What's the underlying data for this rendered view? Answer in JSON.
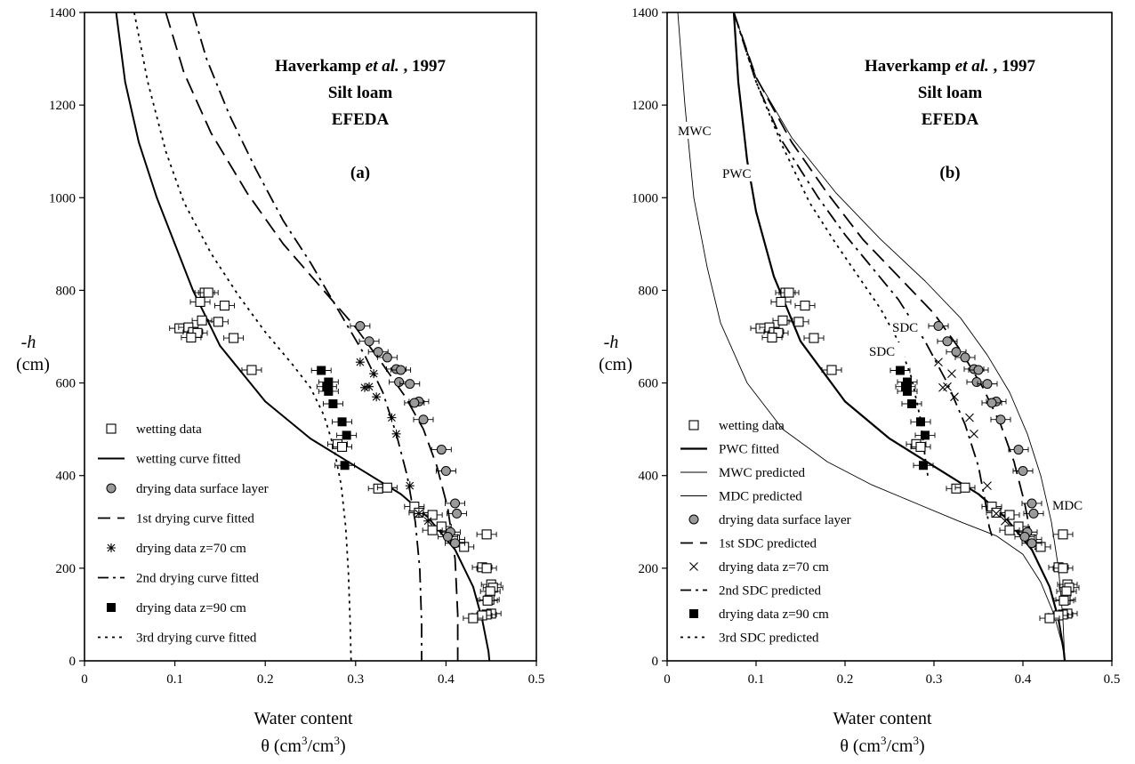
{
  "chart_data": [
    {
      "type": "scatter",
      "panel": "(a)",
      "title": [
        "Haverkamp et al. , 1997",
        "Silt loam",
        "EFEDA"
      ],
      "xlabel": "Water content",
      "xlabel_unit": "θ  (cm3/cm3)",
      "ylabel": "-h",
      "ylabel_unit": "(cm)",
      "xlim": [
        0,
        0.5
      ],
      "ylim": [
        0,
        1400
      ],
      "xticks": [
        "0",
        "0.1",
        "0.2",
        "0.3",
        "0.4",
        "0.5"
      ],
      "yticks": [
        "0",
        "200",
        "400",
        "600",
        "800",
        "1000",
        "1200",
        "1400"
      ],
      "legend_position": "bottom-left",
      "legend": [
        {
          "label": "wetting data",
          "style": "open-square"
        },
        {
          "label": "wetting curve fitted",
          "style": "solid"
        },
        {
          "label": "drying data surface layer",
          "style": "gray-circle"
        },
        {
          "label": "1st  drying curve fitted",
          "style": "long-dash"
        },
        {
          "label": "drying data z=70 cm",
          "style": "star"
        },
        {
          "label": "2nd drying curve fitted",
          "style": "dash-dot"
        },
        {
          "label": "drying data z=90 cm",
          "style": "filled-square"
        },
        {
          "label": "3rd drying curve fitted",
          "style": "dotted"
        }
      ],
      "series": [
        {
          "name": "wetting curve fitted",
          "style": "solid",
          "x": [
            0.035,
            0.045,
            0.06,
            0.08,
            0.1,
            0.12,
            0.15,
            0.2,
            0.25,
            0.3,
            0.35,
            0.38,
            0.41,
            0.43,
            0.44,
            0.447,
            0.448
          ],
          "y": [
            1400,
            1250,
            1120,
            1000,
            900,
            800,
            680,
            560,
            480,
            420,
            360,
            310,
            240,
            160,
            90,
            20,
            0
          ]
        },
        {
          "name": "1st drying curve fitted",
          "style": "long-dash",
          "x": [
            0.09,
            0.11,
            0.14,
            0.18,
            0.22,
            0.26,
            0.3,
            0.33,
            0.355,
            0.375,
            0.39,
            0.402,
            0.41,
            0.413,
            0.413
          ],
          "y": [
            1400,
            1270,
            1140,
            1010,
            900,
            810,
            720,
            640,
            570,
            500,
            420,
            330,
            220,
            100,
            0
          ]
        },
        {
          "name": "2nd drying curve fitted",
          "style": "dash-dot",
          "x": [
            0.12,
            0.135,
            0.16,
            0.19,
            0.22,
            0.25,
            0.28,
            0.31,
            0.33,
            0.345,
            0.357,
            0.366,
            0.371,
            0.373,
            0.373
          ],
          "y": [
            1400,
            1300,
            1180,
            1060,
            950,
            860,
            760,
            660,
            580,
            490,
            400,
            300,
            200,
            80,
            0
          ]
        },
        {
          "name": "3rd drying curve fitted",
          "style": "dotted",
          "x": [
            0.055,
            0.07,
            0.09,
            0.11,
            0.14,
            0.17,
            0.2,
            0.23,
            0.25,
            0.265,
            0.276,
            0.284,
            0.289,
            0.292,
            0.294,
            0.295
          ],
          "y": [
            1400,
            1250,
            1100,
            990,
            880,
            790,
            710,
            640,
            590,
            530,
            460,
            380,
            290,
            190,
            80,
            0
          ]
        },
        {
          "name": "wetting data",
          "style": "open-square",
          "x": [
            0.133,
            0.137,
            0.128,
            0.155,
            0.13,
            0.148,
            0.165,
            0.105,
            0.115,
            0.12,
            0.125,
            0.118,
            0.185,
            0.28,
            0.285,
            0.325,
            0.335,
            0.365,
            0.37,
            0.385,
            0.395,
            0.385,
            0.41,
            0.42,
            0.445,
            0.44,
            0.445,
            0.45,
            0.452,
            0.449,
            0.448,
            0.446,
            0.45,
            0.445,
            0.44,
            0.43
          ],
          "y": [
            795,
            795,
            775,
            767,
            735,
            732,
            697,
            718,
            720,
            710,
            708,
            698,
            628,
            468,
            462,
            372,
            374,
            333,
            320,
            315,
            290,
            282,
            262,
            246,
            273,
            202,
            200,
            165,
            158,
            150,
            132,
            130,
            102,
            100,
            98,
            92
          ]
        },
        {
          "name": "drying data surface layer",
          "style": "gray-circle",
          "x": [
            0.305,
            0.315,
            0.325,
            0.335,
            0.345,
            0.35,
            0.348,
            0.36,
            0.37,
            0.365,
            0.375,
            0.395,
            0.4,
            0.41,
            0.412,
            0.405,
            0.41,
            0.402
          ],
          "y": [
            723,
            690,
            667,
            655,
            630,
            628,
            602,
            598,
            560,
            557,
            521,
            456,
            410,
            340,
            318,
            278,
            254,
            268
          ]
        },
        {
          "name": "drying data z=70 cm",
          "style": "star",
          "x": [
            0.305,
            0.32,
            0.315,
            0.31,
            0.323,
            0.34,
            0.345,
            0.36,
            0.37,
            0.38
          ],
          "y": [
            645,
            620,
            592,
            590,
            570,
            525,
            490,
            378,
            318,
            302
          ]
        },
        {
          "name": "drying data z=90 cm",
          "style": "filled-square",
          "x": [
            0.262,
            0.27,
            0.268,
            0.27,
            0.275,
            0.285,
            0.29,
            0.288
          ],
          "y": [
            627,
            602,
            592,
            582,
            555,
            516,
            487,
            422
          ]
        }
      ]
    },
    {
      "type": "scatter",
      "panel": "(b)",
      "title": [
        "Haverkamp et al. , 1997",
        "Silt loam",
        "EFEDA"
      ],
      "xlabel": "Water content",
      "xlabel_unit": "θ  (cm3/cm3)",
      "ylabel": "-h",
      "ylabel_unit": "(cm)",
      "xlim": [
        0,
        0.5
      ],
      "ylim": [
        0,
        1400
      ],
      "xticks": [
        "0",
        "0.1",
        "0.2",
        "0.3",
        "0.4",
        "0.5"
      ],
      "yticks": [
        "0",
        "200",
        "400",
        "600",
        "800",
        "1000",
        "1200",
        "1400"
      ],
      "legend_position": "bottom-left",
      "annotations": [
        "MWC",
        "PWC",
        "SDC",
        "SDC",
        "MDC"
      ],
      "legend": [
        {
          "label": "wetting data",
          "style": "open-square"
        },
        {
          "label": "PWC  fitted",
          "style": "solid-thick"
        },
        {
          "label": "MWC predicted",
          "style": "solid-thin"
        },
        {
          "label": "MDC  predicted",
          "style": "solid-thin"
        },
        {
          "label": "drying data surface layer",
          "style": "gray-circle"
        },
        {
          "label": "1st  SDC  predicted",
          "style": "long-dash"
        },
        {
          "label": "drying data z=70 cm",
          "style": "cross"
        },
        {
          "label": "2nd SDC  predicted",
          "style": "dash-dot"
        },
        {
          "label": "drying data z=90 cm",
          "style": "filled-square"
        },
        {
          "label": "3rd SDC  predicted",
          "style": "dotted"
        }
      ],
      "series": [
        {
          "name": "PWC fitted",
          "style": "solid-thick",
          "x": [
            0.075,
            0.08,
            0.09,
            0.1,
            0.12,
            0.15,
            0.2,
            0.25,
            0.3,
            0.35,
            0.38,
            0.41,
            0.43,
            0.44,
            0.446,
            0.447
          ],
          "y": [
            1400,
            1250,
            1080,
            970,
            830,
            690,
            560,
            480,
            420,
            360,
            310,
            240,
            160,
            90,
            20,
            0
          ]
        },
        {
          "name": "MWC predicted",
          "style": "solid-thin",
          "x": [
            0.012,
            0.02,
            0.03,
            0.045,
            0.06,
            0.09,
            0.13,
            0.18,
            0.23,
            0.28,
            0.33,
            0.37,
            0.4,
            0.42,
            0.435,
            0.445,
            0.447
          ],
          "y": [
            1400,
            1200,
            1000,
            850,
            730,
            600,
            500,
            430,
            380,
            340,
            300,
            270,
            230,
            170,
            100,
            30,
            0
          ]
        },
        {
          "name": "MDC predicted",
          "style": "solid-thin",
          "x": [
            0.075,
            0.1,
            0.14,
            0.19,
            0.24,
            0.29,
            0.33,
            0.36,
            0.385,
            0.405,
            0.42,
            0.432,
            0.44,
            0.445,
            0.447
          ],
          "y": [
            1400,
            1260,
            1130,
            1010,
            910,
            820,
            740,
            660,
            580,
            490,
            400,
            300,
            200,
            90,
            0
          ]
        },
        {
          "name": "1st SDC predicted",
          "style": "long-dash",
          "x": [
            0.075,
            0.1,
            0.14,
            0.18,
            0.22,
            0.26,
            0.3,
            0.33,
            0.355,
            0.375,
            0.39,
            0.402,
            0.41,
            0.414
          ],
          "y": [
            1400,
            1260,
            1120,
            1010,
            910,
            830,
            750,
            670,
            590,
            510,
            430,
            340,
            260,
            240
          ]
        },
        {
          "name": "2nd SDC predicted",
          "style": "dash-dot",
          "x": [
            0.075,
            0.1,
            0.13,
            0.17,
            0.2,
            0.23,
            0.26,
            0.29,
            0.315,
            0.335,
            0.35,
            0.358,
            0.362,
            0.365
          ],
          "y": [
            1400,
            1250,
            1120,
            1000,
            920,
            850,
            780,
            690,
            600,
            510,
            420,
            340,
            290,
            270
          ]
        },
        {
          "name": "3rd SDC predicted",
          "style": "dotted",
          "x": [
            0.075,
            0.1,
            0.13,
            0.16,
            0.19,
            0.215,
            0.24,
            0.26,
            0.275,
            0.285,
            0.29,
            0.293
          ],
          "y": [
            1400,
            1250,
            1110,
            990,
            900,
            830,
            760,
            690,
            610,
            520,
            440,
            400
          ]
        },
        {
          "name": "wetting data",
          "style": "open-square",
          "x": [
            0.133,
            0.137,
            0.128,
            0.155,
            0.13,
            0.148,
            0.165,
            0.105,
            0.115,
            0.12,
            0.125,
            0.118,
            0.185,
            0.28,
            0.285,
            0.325,
            0.335,
            0.365,
            0.37,
            0.385,
            0.395,
            0.385,
            0.41,
            0.42,
            0.445,
            0.44,
            0.445,
            0.45,
            0.452,
            0.449,
            0.448,
            0.446,
            0.45,
            0.445,
            0.44,
            0.43
          ],
          "y": [
            795,
            795,
            775,
            767,
            735,
            732,
            697,
            718,
            720,
            710,
            708,
            698,
            628,
            468,
            462,
            372,
            374,
            333,
            320,
            315,
            290,
            282,
            262,
            246,
            273,
            202,
            200,
            165,
            158,
            150,
            132,
            130,
            102,
            100,
            98,
            92
          ]
        },
        {
          "name": "drying data surface layer",
          "style": "gray-circle",
          "x": [
            0.305,
            0.315,
            0.325,
            0.335,
            0.345,
            0.35,
            0.348,
            0.36,
            0.37,
            0.365,
            0.375,
            0.395,
            0.4,
            0.41,
            0.412,
            0.405,
            0.41,
            0.402
          ],
          "y": [
            723,
            690,
            667,
            655,
            630,
            628,
            602,
            598,
            560,
            557,
            521,
            456,
            410,
            340,
            318,
            278,
            254,
            268
          ]
        },
        {
          "name": "drying data z=70 cm",
          "style": "cross",
          "x": [
            0.305,
            0.32,
            0.315,
            0.31,
            0.323,
            0.34,
            0.345,
            0.36,
            0.37,
            0.38
          ],
          "y": [
            645,
            620,
            592,
            590,
            570,
            525,
            490,
            378,
            318,
            302
          ]
        },
        {
          "name": "drying data z=90 cm",
          "style": "filled-square",
          "x": [
            0.262,
            0.27,
            0.268,
            0.27,
            0.275,
            0.285,
            0.29,
            0.288
          ],
          "y": [
            627,
            602,
            592,
            582,
            555,
            516,
            487,
            422
          ]
        }
      ]
    }
  ]
}
